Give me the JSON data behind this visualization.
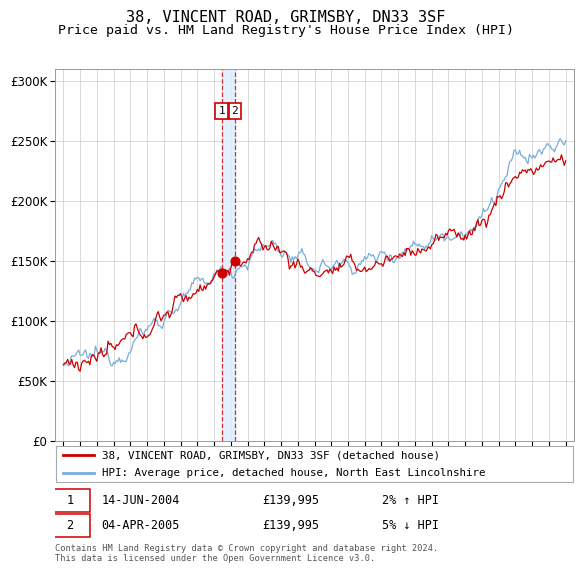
{
  "title": "38, VINCENT ROAD, GRIMSBY, DN33 3SF",
  "subtitle": "Price paid vs. HM Land Registry's House Price Index (HPI)",
  "legend_line1": "38, VINCENT ROAD, GRIMSBY, DN33 3SF (detached house)",
  "legend_line2": "HPI: Average price, detached house, North East Lincolnshire",
  "sale1_date": "14-JUN-2004",
  "sale1_price": "£139,995",
  "sale1_hpi": "2% ↑ HPI",
  "sale1_year": 2004.45,
  "sale2_date": "04-APR-2005",
  "sale2_price": "£139,995",
  "sale2_hpi": "5% ↓ HPI",
  "sale2_year": 2005.25,
  "footer": "Contains HM Land Registry data © Crown copyright and database right 2024.\nThis data is licensed under the Open Government Licence v3.0.",
  "ylim": [
    0,
    310000
  ],
  "xlim": [
    1994.5,
    2025.5
  ],
  "property_color": "#cc0000",
  "hpi_color": "#7aaddb",
  "vline_color": "#cc0000",
  "vband_color": "#ddeeff",
  "background_color": "#ffffff",
  "grid_color": "#cccccc",
  "title_fontsize": 11,
  "subtitle_fontsize": 9.5,
  "axis_fontsize": 8
}
